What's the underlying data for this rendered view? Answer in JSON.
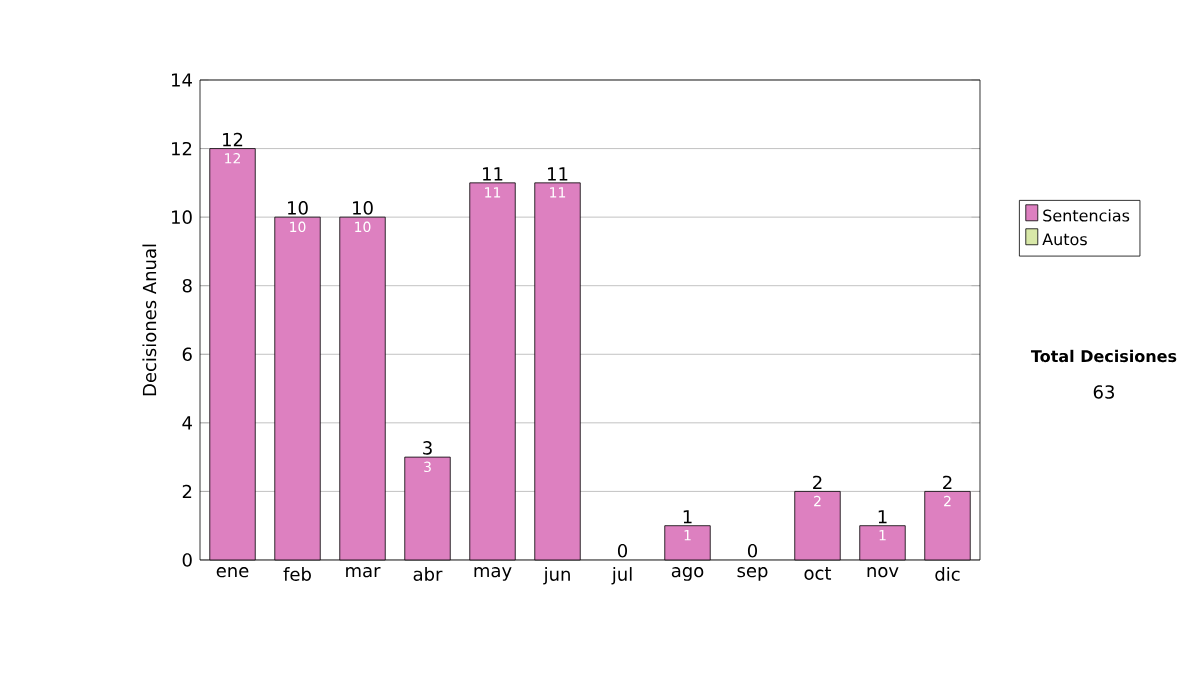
{
  "chart_data": {
    "type": "bar",
    "stacked": true,
    "ylabel": "Decisiones Anual",
    "categories": [
      "ene",
      "feb",
      "mar",
      "abr",
      "may",
      "jun",
      "jul",
      "ago",
      "sep",
      "oct",
      "nov",
      "dic"
    ],
    "series": [
      {
        "name": "Sentencias",
        "color": "#dd80c0",
        "values": [
          12,
          10,
          10,
          3,
          11,
          11,
          0,
          1,
          0,
          2,
          1,
          2
        ],
        "value_labels": [
          "12",
          "10",
          "10",
          "3",
          "11",
          "11",
          null,
          "1",
          null,
          "2",
          "1",
          "2"
        ]
      },
      {
        "name": "Autos",
        "color": "#d8e8a8",
        "values": [
          0,
          0,
          0,
          0,
          0,
          0,
          0,
          0,
          0,
          0,
          0,
          0
        ]
      }
    ],
    "totals": [
      "12",
      "10",
      "10",
      "3",
      "11",
      "11",
      "0",
      "1",
      "0",
      "2",
      "1",
      "2"
    ],
    "ylim": [
      0,
      14
    ],
    "yticks": [
      0,
      2,
      4,
      6,
      8,
      10,
      12,
      14
    ],
    "grid": "y",
    "legend": "right",
    "annotations": [
      "Total Decisiones",
      "63"
    ]
  }
}
